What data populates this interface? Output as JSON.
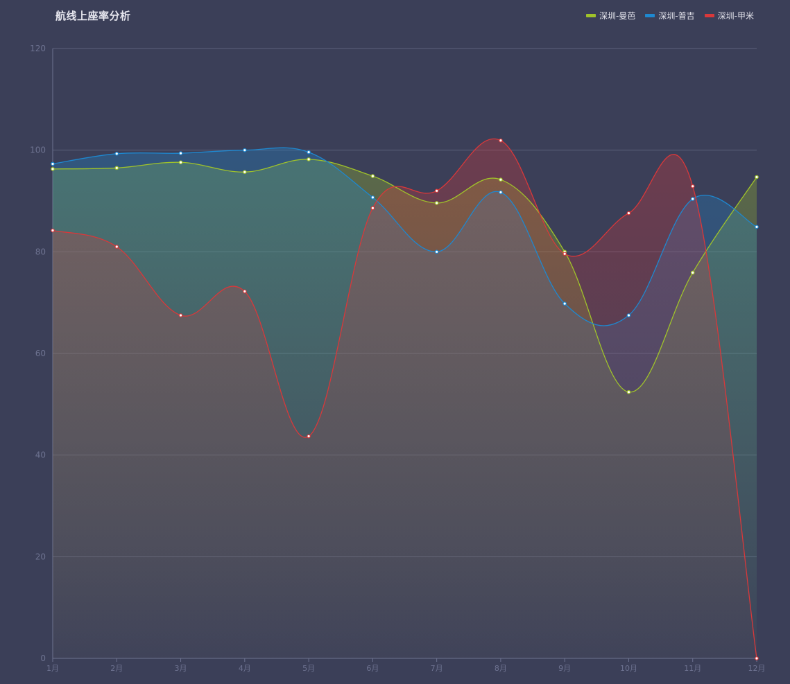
{
  "chart_data": {
    "type": "area",
    "title": "航线上座率分析",
    "xlabel": "",
    "ylabel": "",
    "categories": [
      "1月",
      "2月",
      "3月",
      "4月",
      "5月",
      "6月",
      "7月",
      "8月",
      "9月",
      "10月",
      "11月",
      "12月"
    ],
    "ylim": [
      0,
      120
    ],
    "yticks": [
      0,
      20,
      40,
      60,
      80,
      100,
      120
    ],
    "grid": true,
    "legend_position": "top-right",
    "series": [
      {
        "name": "深圳-曼芭",
        "color": "#a0c32a",
        "values": [
          96.3,
          96.5,
          97.6,
          95.7,
          98.2,
          94.9,
          89.6,
          94.2,
          80.0,
          52.4,
          75.9,
          94.7
        ]
      },
      {
        "name": "深圳-普吉",
        "color": "#1e88d0",
        "values": [
          97.3,
          99.3,
          99.4,
          100.0,
          99.6,
          90.7,
          80.0,
          91.7,
          69.8,
          67.5,
          90.4,
          84.9
        ]
      },
      {
        "name": "深圳-甲米",
        "color": "#d9383a",
        "values": [
          84.2,
          81.0,
          67.5,
          72.2,
          43.7,
          88.6,
          92.0,
          101.9,
          79.6,
          87.6,
          92.9,
          0.0
        ]
      }
    ]
  }
}
